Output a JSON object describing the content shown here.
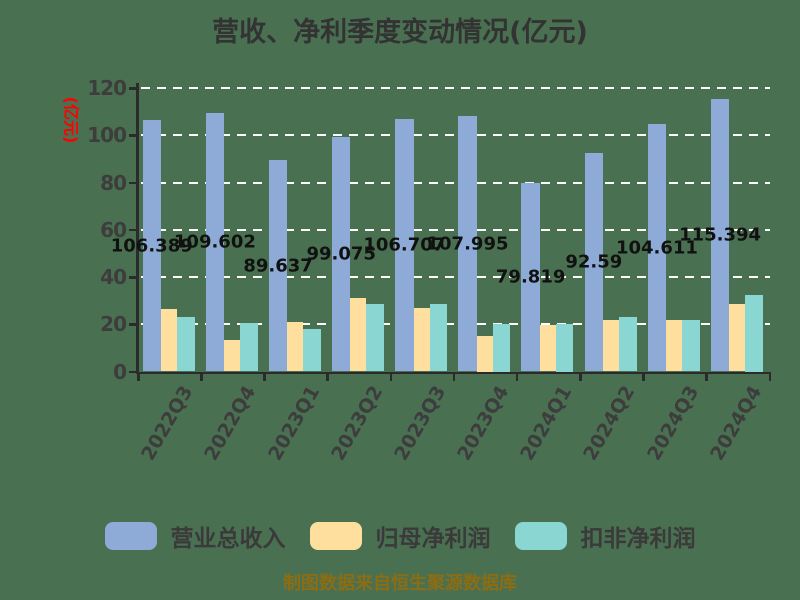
{
  "title": "营收、净利季度变动情况(亿元)",
  "y_axis_title": "(亿元)",
  "source_note": "制图数据来自恒生聚源数据库",
  "colors": {
    "background": "#4A7052",
    "revenue_bar": "#8EABD8",
    "net_profit_bar": "#FFDF9E",
    "non_gaap_bar": "#8AD6D2",
    "axis": "#2B2B2B",
    "gridline": "#FFFFFF",
    "tick_label": "#3D3D3D",
    "title_text": "#333333",
    "value_label": "#111111",
    "y_axis_title_text": "#FF0000",
    "source_note_text": "#8B6D14"
  },
  "legend": {
    "items": [
      {
        "label": "营业总收入",
        "color": "#8EABD8"
      },
      {
        "label": "归母净利润",
        "color": "#FFDF9E"
      },
      {
        "label": "扣非净利润",
        "color": "#8AD6D2"
      }
    ]
  },
  "chart_data": {
    "type": "bar",
    "title": "营收、净利季度变动情况(亿元)",
    "xlabel": "",
    "ylabel": "(亿元)",
    "ylim": [
      0,
      120
    ],
    "yticks": [
      0,
      20,
      40,
      60,
      80,
      100,
      120
    ],
    "grid": "horizontal white dashed",
    "legend_position": "bottom",
    "categories": [
      "2022Q3",
      "2022Q4",
      "2023Q1",
      "2023Q2",
      "2023Q3",
      "2023Q4",
      "2024Q1",
      "2024Q2",
      "2024Q3",
      "2024Q4"
    ],
    "series": [
      {
        "name": "营业总收入",
        "color": "#8EABD8",
        "values": [
          106.389,
          109.602,
          89.637,
          99.075,
          106.707,
          107.995,
          79.819,
          92.59,
          104.611,
          115.394
        ],
        "value_labels": [
          "106.389",
          "109.602",
          "89.637",
          "99.075",
          "106.707",
          "107.995",
          "79.819",
          "92.59",
          "104.611",
          "115.394"
        ]
      },
      {
        "name": "归母净利润",
        "color": "#FFDF9E",
        "values": [
          26.5,
          13.5,
          21.0,
          31.0,
          27.0,
          15.0,
          19.5,
          22.0,
          22.0,
          28.5
        ],
        "values_note": "estimated from bar heights; no data labels shown"
      },
      {
        "name": "扣非净利润",
        "color": "#8AD6D2",
        "values": [
          23.0,
          20.5,
          18.0,
          28.5,
          28.5,
          20.0,
          20.0,
          23.0,
          22.0,
          32.5
        ],
        "values_note": "estimated from bar heights; no data labels shown"
      }
    ]
  }
}
